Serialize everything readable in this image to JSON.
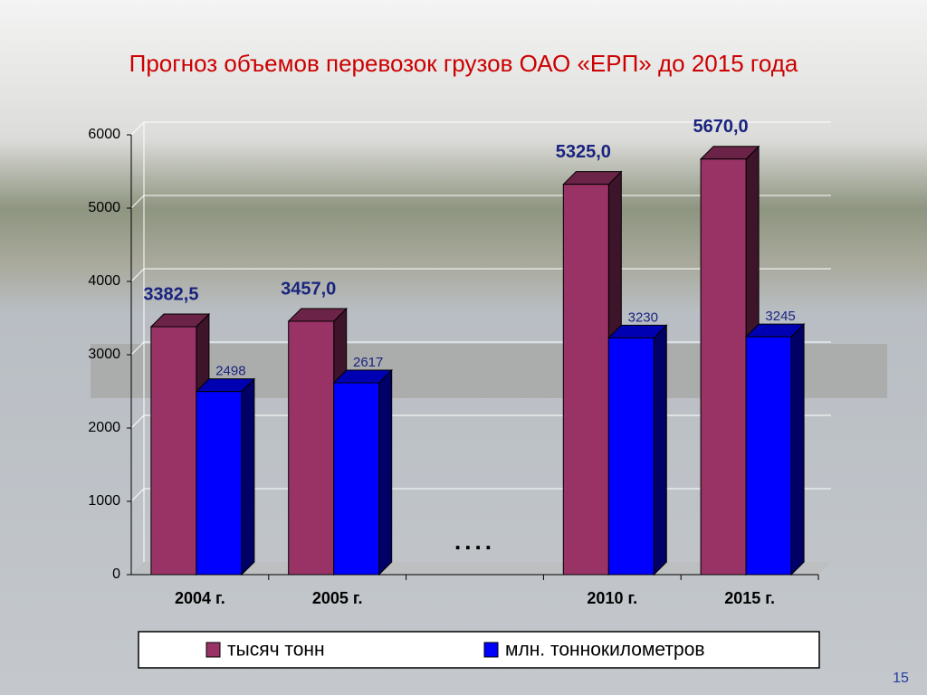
{
  "chart_data": {
    "type": "bar3d",
    "title": "Прогноз объемов перевозок грузов ОАО «ЕРП» до 2015 года",
    "categories": [
      "2004 г.",
      "2005 г.",
      null,
      "2010 г.",
      "2015 г."
    ],
    "series": [
      {
        "name": "тысяч тонн",
        "color": "#993366",
        "values": [
          3382.5,
          3457,
          null,
          5325,
          5670
        ],
        "value_labels": [
          "3382,5",
          "3457,0",
          null,
          "5325,0",
          "5670,0"
        ]
      },
      {
        "name": "млн. тоннокилометров",
        "color": "#0000ff",
        "values": [
          2498,
          2617,
          null,
          3230,
          3245
        ]
      }
    ],
    "annotation": "....",
    "ylim": [
      0,
      6000
    ],
    "yticks": [
      0,
      1000,
      2000,
      3000,
      4000,
      5000,
      6000
    ],
    "grid": true,
    "legend": "bottom",
    "page_number": "15"
  }
}
